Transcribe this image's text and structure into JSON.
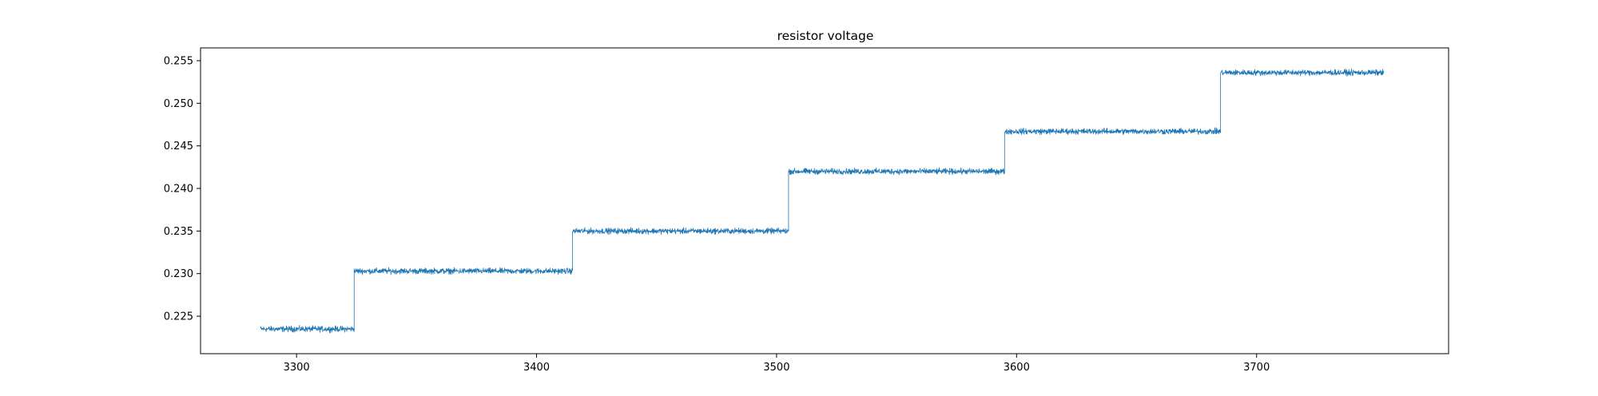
{
  "chart_data": {
    "type": "line",
    "title": "resistor voltage",
    "xlabel": "",
    "ylabel": "",
    "xlim": [
      3260,
      3780
    ],
    "ylim": [
      0.2206,
      0.2565
    ],
    "xticks": [
      3300,
      3400,
      3500,
      3600,
      3700
    ],
    "yticks": [
      0.225,
      0.23,
      0.235,
      0.24,
      0.245,
      0.25,
      0.255
    ],
    "ytick_labels": [
      "0.225",
      "0.230",
      "0.235",
      "0.240",
      "0.245",
      "0.250",
      "0.255"
    ],
    "grid": false,
    "legend": "none",
    "series": [
      {
        "color": "#1f77b4",
        "noise_amplitude": 0.0005,
        "x_range": [
          3285,
          3753
        ],
        "segments": [
          {
            "x_start": 3285,
            "x_end": 3324,
            "y": 0.2235
          },
          {
            "x_start": 3324,
            "x_end": 3415,
            "y": 0.2303
          },
          {
            "x_start": 3415,
            "x_end": 3505,
            "y": 0.235
          },
          {
            "x_start": 3505,
            "x_end": 3595,
            "y": 0.242
          },
          {
            "x_start": 3595,
            "x_end": 3685,
            "y": 0.2467
          },
          {
            "x_start": 3685,
            "x_end": 3753,
            "y": 0.2536
          }
        ]
      }
    ]
  }
}
